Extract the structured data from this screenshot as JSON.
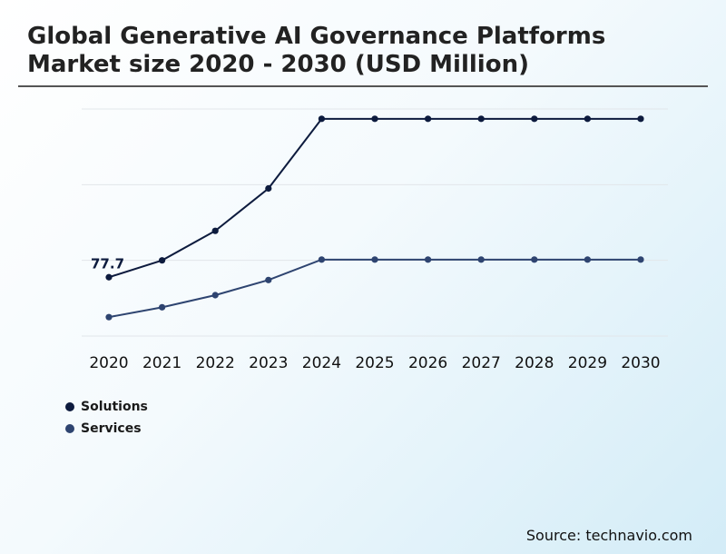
{
  "chart_data": {
    "type": "line",
    "title": "Global Generative AI Governance Platforms Market size 2020 - 2030 (USD Million)",
    "xlabel": "",
    "ylabel": "",
    "categories": [
      "2020",
      "2021",
      "2022",
      "2023",
      "2024",
      "2025",
      "2026",
      "2027",
      "2028",
      "2029",
      "2030"
    ],
    "series": [
      {
        "name": "Solutions",
        "color": "#0d1b3e",
        "values": [
          77.7,
          100,
          139,
          195,
          287,
          287,
          287,
          287,
          287,
          287,
          287
        ]
      },
      {
        "name": "Services",
        "color": "#2e4470",
        "values": [
          25,
          38,
          54,
          74,
          101,
          101,
          101,
          101,
          101,
          101,
          101
        ]
      }
    ],
    "annotations": [
      {
        "series": 0,
        "index": 0,
        "text": "77.7"
      }
    ],
    "ylim": [
      0,
      300
    ],
    "grid": true,
    "legend_position": "bottom-left"
  },
  "source": "Source: technavio.com"
}
